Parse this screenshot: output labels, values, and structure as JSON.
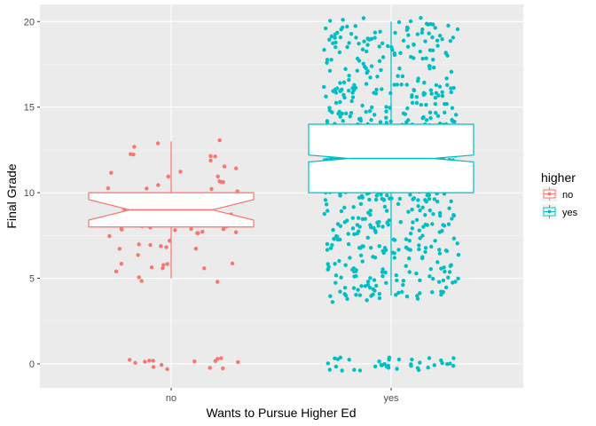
{
  "chart_data": {
    "type": "boxplot",
    "xlabel": "Wants to Pursue Higher Ed",
    "ylabel": "Final Grade",
    "categories": [
      "no",
      "yes"
    ],
    "ylim": [
      -1.4,
      21
    ],
    "y_ticks": [
      0,
      5,
      10,
      15,
      20
    ],
    "grid": true,
    "notched": true,
    "jittered_points": true,
    "legend": {
      "title": "higher",
      "position": "right",
      "entries": [
        "no",
        "yes"
      ]
    },
    "colors": {
      "no": "#F8766D",
      "yes": "#00BFC4"
    },
    "series": [
      {
        "name": "no",
        "lower_whisker": 5,
        "q1": 8,
        "median": 9,
        "q3": 10,
        "upper_whisker": 13,
        "notch_low": 8.4,
        "notch_high": 9.6,
        "n_points": 100,
        "zeros_count": 15
      },
      {
        "name": "yes",
        "lower_whisker": 4,
        "q1": 10,
        "median": 12,
        "q3": 14,
        "upper_whisker": 20,
        "notch_low": 11.8,
        "notch_high": 12.2,
        "n_points": 940,
        "zeros_count": 38
      }
    ]
  }
}
